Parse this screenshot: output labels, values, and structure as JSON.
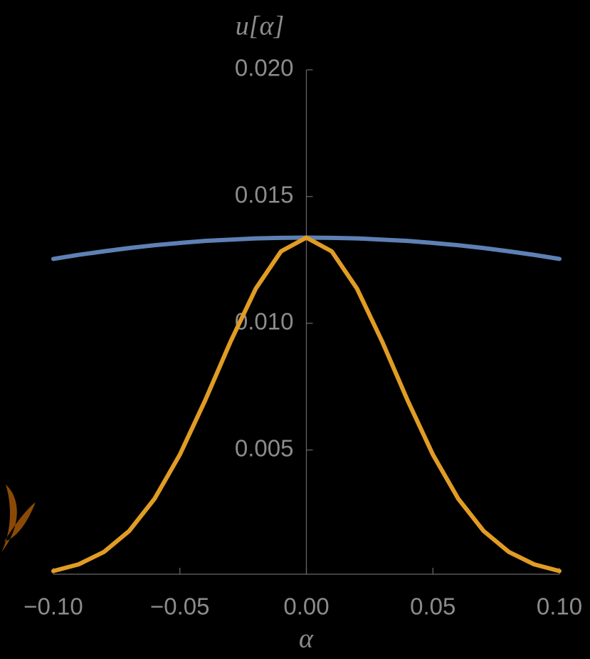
{
  "chart_data": {
    "type": "line",
    "ylabel": "u[α]",
    "xlabel": "α",
    "x": [
      -0.1,
      -0.09,
      -0.08,
      -0.07,
      -0.06,
      -0.05,
      -0.04,
      -0.03,
      -0.02,
      -0.01,
      0,
      0.01,
      0.02,
      0.03,
      0.04,
      0.05,
      0.06,
      0.07,
      0.08,
      0.09,
      0.1
    ],
    "series": [
      {
        "color": "#5e81b5",
        "values": [
          0.01254,
          0.0127,
          0.01284,
          0.01297,
          0.01308,
          0.01317,
          0.01325,
          0.0133,
          0.01335,
          0.01337,
          0.01338,
          0.01337,
          0.01335,
          0.0133,
          0.01325,
          0.01317,
          0.01308,
          0.01297,
          0.01284,
          0.0127,
          0.01254
        ]
      },
      {
        "color": "#e19c24",
        "values": [
          0.000226,
          0.00049,
          0.00098,
          0.00181,
          0.00308,
          0.00482,
          0.00696,
          0.00927,
          0.01137,
          0.01284,
          0.01338,
          0.01284,
          0.01137,
          0.00927,
          0.00696,
          0.00482,
          0.00308,
          0.00181,
          0.00098,
          0.00049,
          0.000226
        ]
      }
    ],
    "xlim": [
      -0.1,
      0.1
    ],
    "ylim": [
      0.0001,
      0.02
    ],
    "xticks": [
      {
        "value": -0.1,
        "label": "−0.10"
      },
      {
        "value": -0.05,
        "label": "−0.05"
      },
      {
        "value": 0,
        "label": "0.00"
      },
      {
        "value": 0.05,
        "label": "0.05"
      },
      {
        "value": 0.1,
        "label": "0.10"
      }
    ],
    "yticks": [
      0.005,
      {
        "value": 0.01,
        "label": "0.010"
      },
      {
        "value": 0.015,
        "label": "0.015"
      },
      {
        "value": 0.02,
        "label": "0.020"
      }
    ]
  }
}
